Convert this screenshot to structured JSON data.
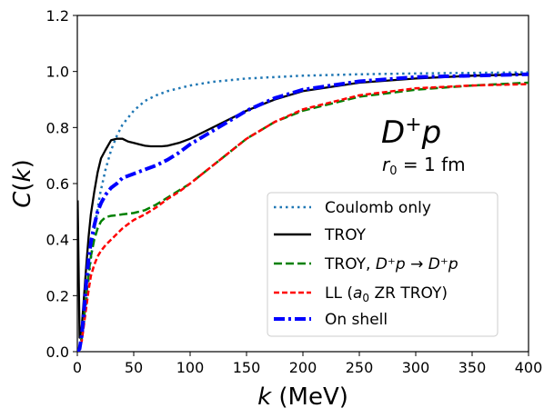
{
  "chart_data": {
    "type": "line",
    "title": "",
    "xlabel": "k (MeV)",
    "ylabel": "C(k)",
    "xlim": [
      0,
      400
    ],
    "ylim": [
      0,
      1.2
    ],
    "xticks": [
      0,
      50,
      100,
      150,
      200,
      250,
      300,
      350,
      400
    ],
    "yticks": [
      0.0,
      0.2,
      0.4,
      0.6,
      0.8,
      1.0,
      1.2
    ],
    "grid": false,
    "legend_position": "lower-right",
    "annotation": {
      "main_base": "D",
      "main_sup": "+",
      "main_tail": "p",
      "sub_var": "r",
      "sub_index": "0",
      "sub_rest": " = 1 fm"
    },
    "series": [
      {
        "name": "Coulomb only",
        "legend_label": "Coulomb only",
        "color": "#1f77b4",
        "style": "dotted",
        "x": [
          2,
          5,
          8,
          12,
          16,
          20,
          25,
          30,
          35,
          40,
          50,
          60,
          70,
          80,
          100,
          120,
          150,
          200,
          250,
          300,
          350,
          400
        ],
        "y": [
          0.02,
          0.07,
          0.18,
          0.33,
          0.46,
          0.56,
          0.65,
          0.72,
          0.77,
          0.81,
          0.86,
          0.895,
          0.915,
          0.93,
          0.95,
          0.963,
          0.975,
          0.985,
          0.99,
          0.993,
          0.995,
          0.997
        ]
      },
      {
        "name": "TROY",
        "legend_label": "TROY",
        "color": "#000000",
        "style": "solid",
        "x": [
          0.3,
          2,
          4,
          6,
          8,
          10,
          12,
          15,
          18,
          21,
          25,
          30,
          35,
          40,
          45,
          50,
          55,
          60,
          65,
          70,
          75,
          80,
          90,
          100,
          110,
          125,
          150,
          175,
          200,
          250,
          300,
          350,
          400
        ],
        "y": [
          0.54,
          0.05,
          0.09,
          0.2,
          0.31,
          0.41,
          0.49,
          0.57,
          0.64,
          0.69,
          0.72,
          0.755,
          0.76,
          0.76,
          0.75,
          0.745,
          0.74,
          0.735,
          0.733,
          0.733,
          0.733,
          0.735,
          0.745,
          0.76,
          0.78,
          0.81,
          0.86,
          0.9,
          0.93,
          0.96,
          0.975,
          0.985,
          0.99
        ]
      },
      {
        "name": "TROY, D+p -> D+p",
        "legend_prefix": "TROY, ",
        "legend_formula": "D⁺p → D⁺p",
        "color": "#008000",
        "style": "dashed",
        "x": [
          0,
          2,
          4,
          6,
          8,
          10,
          12,
          15,
          18,
          21,
          25,
          30,
          35,
          40,
          50,
          60,
          70,
          80,
          100,
          125,
          150,
          175,
          200,
          250,
          300,
          350,
          400
        ],
        "y": [
          0.0,
          0.01,
          0.05,
          0.12,
          0.2,
          0.28,
          0.34,
          0.4,
          0.44,
          0.465,
          0.48,
          0.485,
          0.487,
          0.49,
          0.495,
          0.505,
          0.525,
          0.55,
          0.6,
          0.68,
          0.76,
          0.82,
          0.86,
          0.91,
          0.935,
          0.95,
          0.96
        ]
      },
      {
        "name": "LL (a0 ZR TROY)",
        "legend_prefix": "LL (",
        "legend_a": "a",
        "legend_a_sub": "0",
        "legend_suffix": " ZR TROY)",
        "color": "#ff0000",
        "style": "dashed",
        "x": [
          0,
          2,
          4,
          6,
          8,
          10,
          12,
          15,
          18,
          21,
          25,
          30,
          35,
          40,
          50,
          60,
          70,
          80,
          90,
          100,
          125,
          150,
          175,
          200,
          250,
          300,
          350,
          400
        ],
        "y": [
          0.0,
          0.01,
          0.04,
          0.1,
          0.16,
          0.22,
          0.27,
          0.31,
          0.34,
          0.36,
          0.38,
          0.4,
          0.42,
          0.44,
          0.47,
          0.49,
          0.515,
          0.545,
          0.57,
          0.6,
          0.68,
          0.76,
          0.82,
          0.865,
          0.915,
          0.94,
          0.95,
          0.955
        ]
      },
      {
        "name": "On shell",
        "legend_label": "On shell",
        "color": "#0000ff",
        "style": "dashdot",
        "x": [
          0,
          2,
          4,
          6,
          8,
          10,
          12,
          15,
          18,
          21,
          25,
          30,
          35,
          40,
          50,
          60,
          70,
          80,
          90,
          100,
          125,
          150,
          175,
          200,
          250,
          300,
          350,
          400
        ],
        "y": [
          0.0,
          0.01,
          0.06,
          0.15,
          0.25,
          0.33,
          0.39,
          0.45,
          0.5,
          0.53,
          0.56,
          0.585,
          0.6,
          0.62,
          0.635,
          0.65,
          0.665,
          0.685,
          0.71,
          0.74,
          0.8,
          0.86,
          0.905,
          0.935,
          0.965,
          0.98,
          0.985,
          0.99
        ]
      }
    ]
  }
}
